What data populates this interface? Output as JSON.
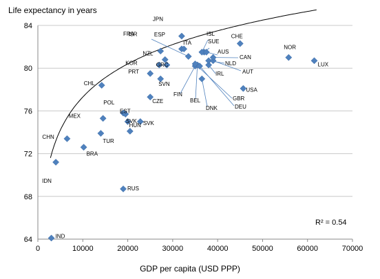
{
  "chart_data": {
    "type": "scatter",
    "title": "",
    "ylabel": "Life expectancy in years",
    "xlabel": "GDP  per capita (USD PPP)",
    "xlim": [
      0,
      70000
    ],
    "ylim": [
      64,
      84
    ],
    "xticks": [
      0,
      10000,
      20000,
      30000,
      40000,
      50000,
      60000,
      70000
    ],
    "yticks": [
      64,
      68,
      72,
      76,
      80,
      84
    ],
    "grid": "horizontal",
    "marker_color": "#4f81bd",
    "annotation": "R² = 0.54",
    "trendline": {
      "type": "logarithmic",
      "a": 4.47,
      "b": 36.13
    },
    "points": [
      {
        "label": "IND",
        "x": 3000,
        "y": 64.1
      },
      {
        "label": "IDN",
        "x": 4000,
        "y": 71.2
      },
      {
        "label": "CHN",
        "x": 6500,
        "y": 73.4
      },
      {
        "label": "BRA",
        "x": 10200,
        "y": 72.6
      },
      {
        "label": "TUR",
        "x": 14000,
        "y": 73.9
      },
      {
        "label": "MEX",
        "x": 14500,
        "y": 75.3
      },
      {
        "label": "CHL",
        "x": 14200,
        "y": 78.4
      },
      {
        "label": "RUS",
        "x": 19000,
        "y": 68.7
      },
      {
        "label": "EST",
        "x": 19000,
        "y": 75.8
      },
      {
        "label": "POL",
        "x": 19500,
        "y": 75.7
      },
      {
        "label": "HUN",
        "x": 20000,
        "y": 75.0
      },
      {
        "label": "SVK",
        "x": 20500,
        "y": 74.1
      },
      {
        "label": "SVK",
        "x": 22800,
        "y": 75.0
      },
      {
        "label": "CZE",
        "x": 25000,
        "y": 77.3
      },
      {
        "label": "PRT",
        "x": 25000,
        "y": 79.5
      },
      {
        "label": "KOR",
        "x": 27000,
        "y": 80.3
      },
      {
        "label": "SVN",
        "x": 27300,
        "y": 79.0
      },
      {
        "label": "NZL",
        "x": 28700,
        "y": 80.3
      },
      {
        "label": "GRC",
        "x": 28300,
        "y": 80.8
      },
      {
        "label": "ISR",
        "x": 27300,
        "y": 81.6
      },
      {
        "label": "ESP",
        "x": 32000,
        "y": 81.8
      },
      {
        "label": "ITA",
        "x": 32500,
        "y": 81.8
      },
      {
        "label": "FRA",
        "x": 33500,
        "y": 81.1
      },
      {
        "label": "JPN",
        "x": 32000,
        "y": 83.0
      },
      {
        "label": "FIN",
        "x": 35000,
        "y": 80.2
      },
      {
        "label": "BEL",
        "x": 35500,
        "y": 80.3
      },
      {
        "label": "DNK",
        "x": 36500,
        "y": 79.0
      },
      {
        "label": "DEU",
        "x": 36000,
        "y": 80.2
      },
      {
        "label": "GBR",
        "x": 35000,
        "y": 80.4
      },
      {
        "label": "IRL",
        "x": 38000,
        "y": 80.3
      },
      {
        "label": "SUE",
        "x": 37000,
        "y": 81.5
      },
      {
        "label": "ISL",
        "x": 36500,
        "y": 81.5
      },
      {
        "label": "AUS",
        "x": 37500,
        "y": 81.5
      },
      {
        "label": "NLD",
        "x": 38000,
        "y": 80.7
      },
      {
        "label": "AUT",
        "x": 39000,
        "y": 80.7
      },
      {
        "label": "CAN",
        "x": 39000,
        "y": 81.0
      },
      {
        "label": "CHE",
        "x": 45000,
        "y": 82.3
      },
      {
        "label": "USA",
        "x": 45700,
        "y": 78.1
      },
      {
        "label": "NOR",
        "x": 55800,
        "y": 81.0
      },
      {
        "label": "LUX",
        "x": 61500,
        "y": 80.7
      }
    ]
  }
}
